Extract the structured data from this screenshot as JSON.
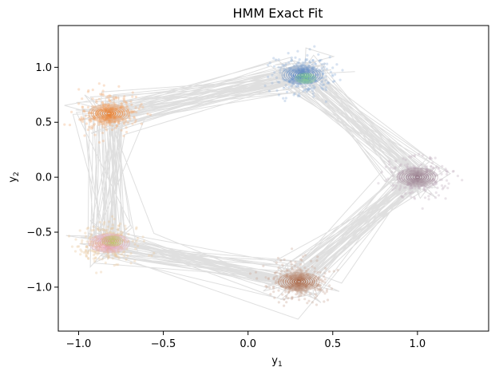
{
  "chart_data": {
    "type": "scatter",
    "title": "HMM Exact Fit",
    "xlabel": "y",
    "xlabel_sub": "1",
    "ylabel": "y",
    "ylabel_sub": "2",
    "xlim": [
      -1.12,
      1.42
    ],
    "ylim": [
      -1.4,
      1.38
    ],
    "xticks": [
      -1.0,
      -0.5,
      0.0,
      0.5,
      1.0
    ],
    "xtick_labels": [
      "−1.0",
      "−0.5",
      "0.0",
      "0.5",
      "1.0"
    ],
    "yticks": [
      -1.0,
      -0.5,
      0.0,
      0.5,
      1.0
    ],
    "ytick_labels": [
      "−1.0",
      "−0.5",
      "0.0",
      "0.5",
      "1.0"
    ],
    "grid": false,
    "trajectory_color": "#dcdcdc",
    "clusters": [
      {
        "center": [
          0.32,
          0.93
        ],
        "spread": 0.1,
        "color": "#3b6fb5",
        "point_color": "#8faed6"
      },
      {
        "center": [
          -0.82,
          0.58
        ],
        "spread": 0.1,
        "color": "#e8731c",
        "point_color": "#f0ae7a"
      },
      {
        "center": [
          1.0,
          0.0
        ],
        "spread": 0.1,
        "color": "#8c6d7e",
        "point_color": "#c4b3bf"
      },
      {
        "center": [
          -0.82,
          -0.6
        ],
        "spread": 0.1,
        "color": "#e58aa8",
        "point_color": "#e8c79a"
      },
      {
        "center": [
          0.3,
          -0.95
        ],
        "spread": 0.1,
        "color": "#a0522d",
        "point_color": "#c9a595"
      }
    ],
    "extra_contours": [
      {
        "center": [
          0.34,
          0.9
        ],
        "color": "#7fd08a"
      },
      {
        "center": [
          -0.8,
          -0.58
        ],
        "color": "#b8c860"
      }
    ]
  }
}
